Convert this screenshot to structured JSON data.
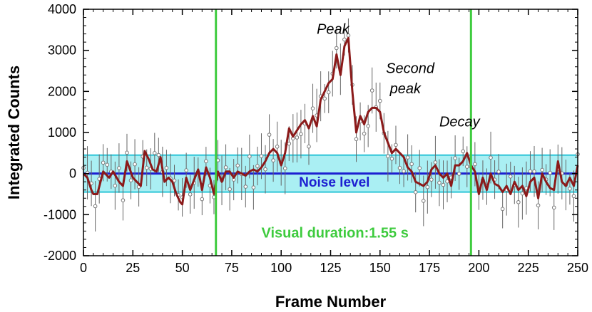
{
  "chart_data": {
    "type": "line",
    "xlabel": "Frame Number",
    "ylabel": "Integrated Counts",
    "xlim": [
      0,
      250
    ],
    "ylim": [
      -2000,
      4000
    ],
    "xticks": [
      0,
      25,
      50,
      75,
      100,
      125,
      150,
      175,
      200,
      225,
      250
    ],
    "yticks": [
      -2000,
      -1000,
      0,
      1000,
      2000,
      3000,
      4000
    ],
    "x_tick_labels": [
      "0",
      "25",
      "50",
      "75",
      "100",
      "125",
      "150",
      "175",
      "200",
      "225",
      "250"
    ],
    "y_tick_labels": [
      "-2000",
      "-1000",
      "0",
      "1000",
      "2000",
      "3000",
      "4000"
    ],
    "noise": {
      "level": 0,
      "band": [
        -450,
        450
      ],
      "label": "Noise level"
    },
    "duration_markers": {
      "start": 67,
      "end": 196,
      "label": "Visual duration:1.55 s"
    },
    "annotations": [
      {
        "text": "Peak",
        "x": 118,
        "y": 3400
      },
      {
        "text": "Second",
        "x": 153,
        "y": 2450
      },
      {
        "text": "peak",
        "x": 155,
        "y": 1950
      },
      {
        "text": "Decay",
        "x": 180,
        "y": 1150
      }
    ],
    "series": [
      {
        "kind": "smoothed-curve",
        "color": "#8b1a1a",
        "x": [
          0,
          2,
          4,
          5,
          7,
          10,
          13,
          15,
          18,
          20,
          22,
          25,
          27,
          29,
          31,
          33,
          35,
          37,
          39,
          41,
          43,
          45,
          47,
          49,
          50,
          52,
          54,
          56,
          58,
          60,
          62,
          64,
          66,
          68,
          70,
          72,
          74,
          76,
          78,
          80,
          82,
          84,
          86,
          88,
          90,
          92,
          94,
          96,
          98,
          100,
          102,
          104,
          106,
          108,
          110,
          112,
          114,
          116,
          118,
          120,
          122,
          124,
          126,
          128,
          130,
          132,
          134,
          136,
          138,
          140,
          142,
          144,
          146,
          148,
          150,
          152,
          154,
          156,
          158,
          160,
          162,
          164,
          166,
          168,
          170,
          172,
          174,
          176,
          178,
          180,
          182,
          184,
          186,
          188,
          190,
          192,
          194,
          196,
          198,
          200,
          202,
          204,
          206,
          208,
          210,
          212,
          214,
          216,
          218,
          220,
          222,
          224,
          226,
          228,
          230,
          232,
          234,
          236,
          238,
          240,
          242,
          244,
          246,
          248,
          250
        ],
        "y": [
          0,
          -100,
          -400,
          -500,
          -500,
          50,
          -100,
          50,
          -200,
          -300,
          300,
          -100,
          -200,
          -300,
          550,
          350,
          100,
          50,
          400,
          -200,
          -100,
          -200,
          -500,
          -700,
          -750,
          -100,
          -400,
          -150,
          100,
          -400,
          150,
          -100,
          -500,
          50,
          -200,
          50,
          50,
          -100,
          50,
          0,
          -50,
          50,
          100,
          50,
          150,
          300,
          500,
          600,
          500,
          200,
          500,
          1100,
          900,
          1050,
          1200,
          1300,
          1100,
          1400,
          1150,
          1800,
          2000,
          2200,
          2300,
          2900,
          2400,
          3100,
          3300,
          2000,
          1000,
          1400,
          1200,
          1500,
          1600,
          1600,
          1500,
          1000,
          750,
          500,
          600,
          500,
          400,
          150,
          50,
          -200,
          -250,
          -300,
          -200,
          100,
          200,
          0,
          -100,
          0,
          -300,
          200,
          200,
          300,
          500,
          200,
          50,
          -500,
          -100,
          -400,
          0,
          -250,
          -300,
          -450,
          -300,
          -500,
          -200,
          -400,
          -300,
          -550,
          -200,
          -100,
          -600,
          0,
          -200,
          -350,
          -400,
          300,
          -200,
          -300,
          -100,
          -300,
          200
        ]
      }
    ],
    "samples_note": "Gray open circles with vertical error bars show per-frame measurements scattered around the smoothed curve."
  }
}
